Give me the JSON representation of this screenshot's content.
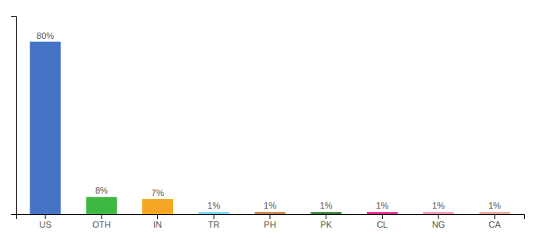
{
  "chart_data": {
    "type": "bar",
    "categories": [
      "US",
      "OTH",
      "IN",
      "TR",
      "PH",
      "PK",
      "CL",
      "NG",
      "CA"
    ],
    "values": [
      80,
      8,
      7,
      1,
      1,
      1,
      1,
      1,
      1
    ],
    "value_labels": [
      "80%",
      "8%",
      "7%",
      "1%",
      "1%",
      "1%",
      "1%",
      "1%",
      "1%"
    ],
    "colors": [
      "#4472c4",
      "#3db843",
      "#f5a623",
      "#6ecff6",
      "#c87941",
      "#2e7d32",
      "#e91e8c",
      "#f48fb1",
      "#e8a090"
    ],
    "ylim": [
      0,
      92
    ],
    "data_labels": true,
    "tick_labels": "x",
    "grid": false
  }
}
